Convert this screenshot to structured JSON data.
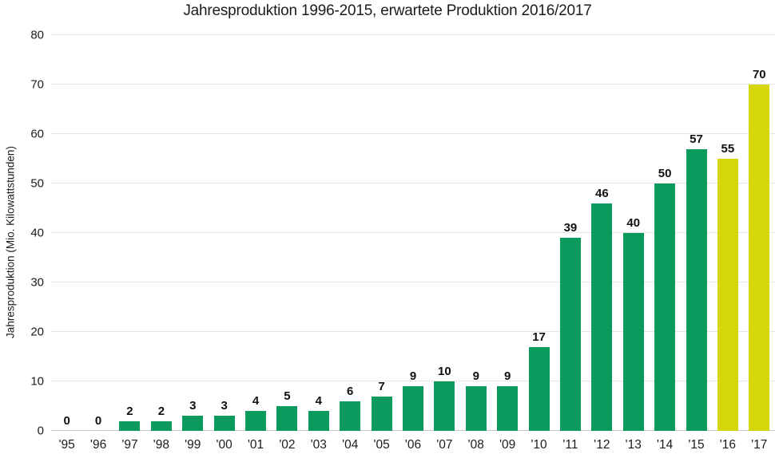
{
  "chart_data": {
    "type": "bar",
    "title": "Jahresproduktion 1996-2015, erwartete Produktion 2016/2017",
    "ylabel": "Jahresproduktion (Mio. Kilowattstunden)",
    "xlabel": "",
    "ylim": [
      0,
      80
    ],
    "yticks": [
      0,
      10,
      20,
      30,
      40,
      50,
      60,
      70,
      80
    ],
    "grid": "horizontal",
    "legend": "none",
    "categories": [
      "'95",
      "'96",
      "'97",
      "'98",
      "'99",
      "'00",
      "'01",
      "'02",
      "'03",
      "'04",
      "'05",
      "'06",
      "'07",
      "'08",
      "'09",
      "'10",
      "'11",
      "'12",
      "'13",
      "'14",
      "'15",
      "'16",
      "'17"
    ],
    "values": [
      0,
      0,
      2,
      2,
      3,
      3,
      4,
      5,
      4,
      6,
      7,
      9,
      10,
      9,
      9,
      17,
      39,
      46,
      40,
      50,
      57,
      55,
      70
    ],
    "data_labels_shown": true,
    "expected_categories": [
      "'16",
      "'17"
    ],
    "colors": {
      "actual_bar": "#0a9a5e",
      "expected_bar": "#d6d70a",
      "text": "#1c1c1c",
      "gridline": "#e4e4e4",
      "baseline": "#c9c9c9"
    }
  }
}
